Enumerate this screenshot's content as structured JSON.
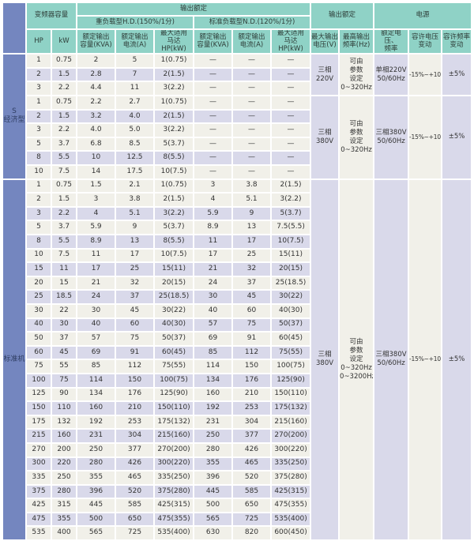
{
  "colors": {
    "header_teal": "#8fd2c6",
    "label_blue": "#7486bf",
    "row_cream": "#f1f0e9",
    "row_lavender": "#d9d9ea",
    "grid_white": "#ffffff",
    "text": "#333333"
  },
  "header": {
    "inverter_capacity": "变频器容量",
    "output_rating_top": "输出额定",
    "heavy_duty": "重负载型H.D.(150%/1分)",
    "normal_duty": "标准负载型N.D.(120%/1分)",
    "output_rating_right": "输出额定",
    "power_supply": "电源",
    "hp": "HP",
    "kw": "kW",
    "rated_output_capacity": "额定输出\n容量(KVA)",
    "rated_output_current": "额定输出\n电流(A)",
    "max_motor": "最大适用\n马达HP(kW)",
    "max_output_voltage": "最大输出\n电压(V)",
    "max_output_frequency": "最高输出\n频率(Hz)",
    "rated_voltage_frequency": "额定电压、\n频率",
    "voltage_tolerance": "容许电压\n变动",
    "frequency_tolerance": "容许频率\n变动"
  },
  "sections": [
    {
      "label": "S\n经济型",
      "shades": [
        "c",
        "p",
        "c",
        "c",
        "p",
        "c",
        "c",
        "p",
        "c"
      ],
      "rows": [
        [
          "1",
          "0.75",
          "2",
          "5",
          "1(0.75)",
          "—",
          "—",
          "—"
        ],
        [
          "2",
          "1.5",
          "2.8",
          "7",
          "2(1.5)",
          "—",
          "—",
          "—"
        ],
        [
          "3",
          "2.2",
          "4.4",
          "11",
          "3(2.2)",
          "—",
          "—",
          "—"
        ],
        [
          "1",
          "0.75",
          "2.2",
          "2.7",
          "1(0.75)",
          "—",
          "—",
          "—"
        ],
        [
          "2",
          "1.5",
          "3.2",
          "4.0",
          "2(1.5)",
          "—",
          "—",
          "—"
        ],
        [
          "3",
          "2.2",
          "4.0",
          "5.0",
          "3(2.2)",
          "—",
          "—",
          "—"
        ],
        [
          "5",
          "3.7",
          "6.8",
          "8.5",
          "5(3.7)",
          "—",
          "—",
          "—"
        ],
        [
          "8",
          "5.5",
          "10",
          "12.5",
          "8(5.5)",
          "—",
          "—",
          "—"
        ],
        [
          "10",
          "7.5",
          "14",
          "17.5",
          "10(7.5)",
          "—",
          "—",
          "—"
        ]
      ],
      "groups": [
        {
          "start": 0,
          "span": 3,
          "voltage": "三相\n220V",
          "frequency": "可由\n参数\n设定\n0~320Hz",
          "supply": "单相220V\n50/60Hz",
          "voltage_tolerance": "-15%~+10%",
          "frequency_tolerance": "±5%"
        },
        {
          "start": 3,
          "span": 6,
          "voltage": "三相\n380V",
          "frequency": "可由\n参数\n设定\n0~320Hz",
          "supply": "三相380V\n50/60Hz",
          "voltage_tolerance": "-15%~+10%",
          "frequency_tolerance": "±5%"
        }
      ]
    },
    {
      "label": "标准机",
      "shades": [
        "c",
        "c",
        "p",
        "c",
        "p",
        "c",
        "p",
        "c",
        "p",
        "c",
        "p",
        "c",
        "p",
        "c",
        "p",
        "c",
        "p",
        "c",
        "p",
        "c",
        "p",
        "c",
        "p",
        "c",
        "p",
        "c"
      ],
      "rows": [
        [
          "1",
          "0.75",
          "1.5",
          "2.1",
          "1(0.75)",
          "3",
          "3.8",
          "2(1.5)"
        ],
        [
          "2",
          "1.5",
          "3",
          "3.8",
          "2(1.5)",
          "4",
          "5.1",
          "3(2.2)"
        ],
        [
          "3",
          "2.2",
          "4",
          "5.1",
          "3(2.2)",
          "5.9",
          "9",
          "5(3.7)"
        ],
        [
          "5",
          "3.7",
          "5.9",
          "9",
          "5(3.7)",
          "8.9",
          "13",
          "7.5(5.5)"
        ],
        [
          "8",
          "5.5",
          "8.9",
          "13",
          "8(5.5)",
          "11",
          "17",
          "10(7.5)"
        ],
        [
          "10",
          "7.5",
          "11",
          "17",
          "10(7.5)",
          "17",
          "25",
          "15(11)"
        ],
        [
          "15",
          "11",
          "17",
          "25",
          "15(11)",
          "21",
          "32",
          "20(15)"
        ],
        [
          "20",
          "15",
          "21",
          "32",
          "20(15)",
          "24",
          "37",
          "25(18.5)"
        ],
        [
          "25",
          "18.5",
          "24",
          "37",
          "25(18.5)",
          "30",
          "45",
          "30(22)"
        ],
        [
          "30",
          "22",
          "30",
          "45",
          "30(22)",
          "40",
          "60",
          "40(30)"
        ],
        [
          "40",
          "30",
          "40",
          "60",
          "40(30)",
          "57",
          "75",
          "50(37)"
        ],
        [
          "50",
          "37",
          "57",
          "75",
          "50(37)",
          "69",
          "91",
          "60(45)"
        ],
        [
          "60",
          "45",
          "69",
          "91",
          "60(45)",
          "85",
          "112",
          "75(55)"
        ],
        [
          "75",
          "55",
          "85",
          "112",
          "75(55)",
          "114",
          "150",
          "100(75)"
        ],
        [
          "100",
          "75",
          "114",
          "150",
          "100(75)",
          "134",
          "176",
          "125(90)"
        ],
        [
          "125",
          "90",
          "134",
          "176",
          "125(90)",
          "160",
          "210",
          "150(110)"
        ],
        [
          "150",
          "110",
          "160",
          "210",
          "150(110)",
          "192",
          "253",
          "175(132)"
        ],
        [
          "175",
          "132",
          "192",
          "253",
          "175(132)",
          "231",
          "304",
          "215(160)"
        ],
        [
          "215",
          "160",
          "231",
          "304",
          "215(160)",
          "250",
          "377",
          "270(200)"
        ],
        [
          "270",
          "200",
          "250",
          "377",
          "270(200)",
          "280",
          "426",
          "300(220)"
        ],
        [
          "300",
          "220",
          "280",
          "426",
          "300(220)",
          "355",
          "465",
          "335(250)"
        ],
        [
          "335",
          "250",
          "355",
          "465",
          "335(250)",
          "396",
          "520",
          "375(280)"
        ],
        [
          "375",
          "280",
          "396",
          "520",
          "375(280)",
          "445",
          "585",
          "425(315)"
        ],
        [
          "425",
          "315",
          "445",
          "585",
          "425(315)",
          "500",
          "650",
          "475(355)"
        ],
        [
          "475",
          "355",
          "500",
          "650",
          "475(355)",
          "565",
          "725",
          "535(400)"
        ],
        [
          "535",
          "400",
          "565",
          "725",
          "535(400)",
          "630",
          "820",
          "600(450)"
        ]
      ],
      "groups": [
        {
          "start": 0,
          "span": 26,
          "voltage": "三相\n380V",
          "frequency": "可由\n参数\n设定\n0~320Hz\n0~3200Hz",
          "supply": "三相380V\n50/60Hz",
          "voltage_tolerance": "-15%~+10%",
          "frequency_tolerance": "±5%"
        }
      ]
    }
  ]
}
